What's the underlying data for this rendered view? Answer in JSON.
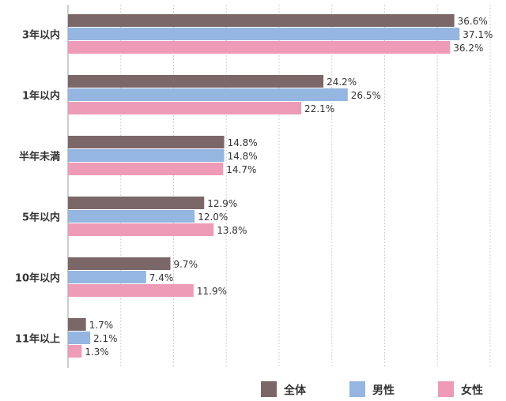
{
  "chart_data": {
    "type": "bar",
    "orientation": "horizontal",
    "categories": [
      "3年以内",
      "1年以内",
      "半年未満",
      "5年以内",
      "10年以内",
      "11年以上"
    ],
    "series": [
      {
        "name": "全体",
        "color": "#7b6768",
        "values": [
          36.6,
          24.2,
          14.8,
          12.9,
          9.7,
          1.7
        ],
        "labels": [
          "36.6%",
          "24.2%",
          "14.8%",
          "12.9%",
          "9.7%",
          "1.7%"
        ]
      },
      {
        "name": "男性",
        "color": "#94b6e0",
        "values": [
          37.1,
          26.5,
          14.8,
          12.0,
          7.4,
          2.1
        ],
        "labels": [
          "37.1%",
          "26.5%",
          "14.8%",
          "12.0%",
          "7.4%",
          "2.1%"
        ]
      },
      {
        "name": "女性",
        "color": "#ee9bb8",
        "values": [
          36.2,
          22.1,
          14.7,
          13.8,
          11.9,
          1.3
        ],
        "labels": [
          "36.2%",
          "22.1%",
          "14.7%",
          "13.8%",
          "11.9%",
          "1.3%"
        ]
      }
    ],
    "xlim": [
      0,
      40
    ],
    "grid": true,
    "legend": "bottom-right"
  }
}
